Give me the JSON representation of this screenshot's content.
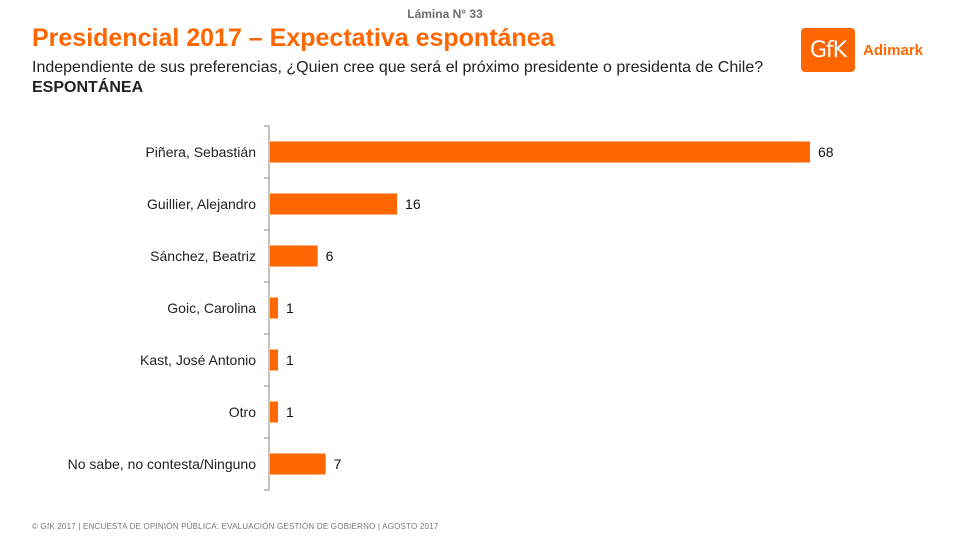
{
  "header": {
    "slide_number": "Lámina N° 33",
    "title": "Presidencial 2017 – Expectativa espontánea",
    "subtitle_text": "Independiente de sus preferencias, ¿Quien cree que será el próximo presidente o presidenta de Chile?",
    "subtitle_emphasis": "ESPONTÁNEA"
  },
  "logo": {
    "mark_text": "GfK",
    "brand_text": "Adimark",
    "color": "#ff6600"
  },
  "chart_data": {
    "type": "bar",
    "orientation": "horizontal",
    "title": "",
    "xlabel": "",
    "ylabel": "",
    "xlim": [
      0,
      70
    ],
    "grid": false,
    "bar_color": "#ff6600",
    "categories": [
      "Piñera, Sebastián",
      "Guillier, Alejandro",
      "Sánchez, Beatriz",
      "Goic, Carolina",
      "Kast, José Antonio",
      "Otro",
      "No sabe, no contesta/Ninguno"
    ],
    "values": [
      68,
      16,
      6,
      1,
      1,
      1,
      7
    ]
  },
  "footer": {
    "text": "© GfK 2017 | ENCUESTA DE OPINIÓN PÚBLICA: EVALUACIÓN GESTIÓN DE GOBIERNO | AGOSTO 2017"
  }
}
